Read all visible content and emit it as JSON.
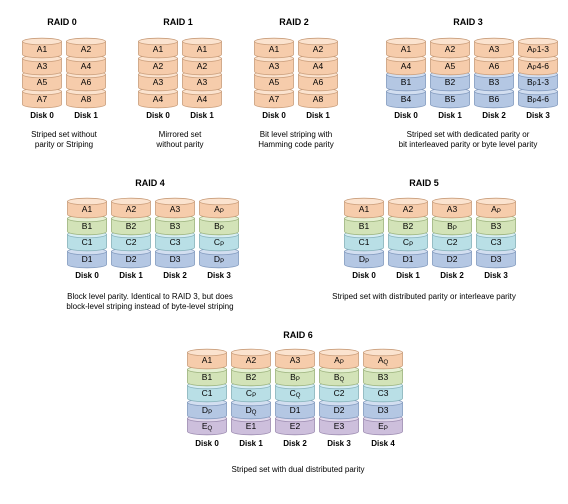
{
  "colors": {
    "orange": {
      "fill": "#f6ccab",
      "top": "#fbe3cf",
      "stroke": "#c99d7a"
    },
    "green": {
      "fill": "#d3e3b8",
      "top": "#e6f0d4",
      "stroke": "#9bb27c"
    },
    "cyan": {
      "fill": "#b9dfe6",
      "top": "#d8eef2",
      "stroke": "#86b1ba"
    },
    "blue": {
      "fill": "#b4c7e3",
      "top": "#d2def0",
      "stroke": "#8199bd"
    },
    "purple": {
      "fill": "#cdbfdc",
      "top": "#e2d9ec",
      "stroke": "#9c8bb0"
    }
  },
  "arrays": [
    {
      "title": "RAID 0",
      "caption": [
        "Striped set without",
        "parity or Striping"
      ],
      "disks": [
        {
          "label": "Disk 0",
          "blocks": [
            {
              "t": "A1",
              "c": "orange"
            },
            {
              "t": "A3",
              "c": "orange"
            },
            {
              "t": "A5",
              "c": "orange"
            },
            {
              "t": "A7",
              "c": "orange"
            }
          ]
        },
        {
          "label": "Disk 1",
          "blocks": [
            {
              "t": "A2",
              "c": "orange"
            },
            {
              "t": "A4",
              "c": "orange"
            },
            {
              "t": "A6",
              "c": "orange"
            },
            {
              "t": "A8",
              "c": "orange"
            }
          ]
        }
      ]
    },
    {
      "title": "RAID 1",
      "caption": [
        "Mirrored set",
        "without parity"
      ],
      "disks": [
        {
          "label": "Disk 0",
          "blocks": [
            {
              "t": "A1",
              "c": "orange"
            },
            {
              "t": "A2",
              "c": "orange"
            },
            {
              "t": "A3",
              "c": "orange"
            },
            {
              "t": "A4",
              "c": "orange"
            }
          ]
        },
        {
          "label": "Disk 1",
          "blocks": [
            {
              "t": "A1",
              "c": "orange"
            },
            {
              "t": "A2",
              "c": "orange"
            },
            {
              "t": "A3",
              "c": "orange"
            },
            {
              "t": "A4",
              "c": "orange"
            }
          ]
        }
      ]
    },
    {
      "title": "RAID 2",
      "caption": [
        "Bit level striping with",
        "Hamming code parity"
      ],
      "disks": [
        {
          "label": "Disk 0",
          "blocks": [
            {
              "t": "A1",
              "c": "orange"
            },
            {
              "t": "A3",
              "c": "orange"
            },
            {
              "t": "A5",
              "c": "orange"
            },
            {
              "t": "A7",
              "c": "orange"
            }
          ]
        },
        {
          "label": "Disk 1",
          "blocks": [
            {
              "t": "A2",
              "c": "orange"
            },
            {
              "t": "A4",
              "c": "orange"
            },
            {
              "t": "A6",
              "c": "orange"
            },
            {
              "t": "A8",
              "c": "orange"
            }
          ]
        }
      ]
    },
    {
      "title": "RAID 3",
      "caption": [
        "Striped set with dedicated parity or",
        "bit interleaved parity or byte level parity"
      ],
      "disks": [
        {
          "label": "Disk 0",
          "blocks": [
            {
              "t": "A1",
              "c": "orange"
            },
            {
              "t": "A4",
              "c": "orange"
            },
            {
              "t": "B1",
              "c": "blue"
            },
            {
              "t": "B4",
              "c": "blue"
            }
          ]
        },
        {
          "label": "Disk 1",
          "blocks": [
            {
              "t": "A2",
              "c": "orange"
            },
            {
              "t": "A5",
              "c": "orange"
            },
            {
              "t": "B2",
              "c": "blue"
            },
            {
              "t": "B5",
              "c": "blue"
            }
          ]
        },
        {
          "label": "Disk 2",
          "blocks": [
            {
              "t": "A3",
              "c": "orange"
            },
            {
              "t": "A6",
              "c": "orange"
            },
            {
              "t": "B3",
              "c": "blue"
            },
            {
              "t": "B6",
              "c": "blue"
            }
          ]
        },
        {
          "label": "Disk 3",
          "blocks": [
            {
              "t": "A",
              "s": "P",
              "a": "1-3",
              "c": "orange"
            },
            {
              "t": "A",
              "s": "P",
              "a": "4-6",
              "c": "orange"
            },
            {
              "t": "B",
              "s": "P",
              "a": "1-3",
              "c": "blue"
            },
            {
              "t": "B",
              "s": "P",
              "a": "4-6",
              "c": "blue"
            }
          ]
        }
      ]
    },
    {
      "title": "RAID 4",
      "caption": [
        "Block level parity. Identical to RAID 3, but does",
        "block-level striping instead of byte-level striping"
      ],
      "disks": [
        {
          "label": "Disk 0",
          "blocks": [
            {
              "t": "A1",
              "c": "orange"
            },
            {
              "t": "B1",
              "c": "green"
            },
            {
              "t": "C1",
              "c": "cyan"
            },
            {
              "t": "D1",
              "c": "blue"
            }
          ]
        },
        {
          "label": "Disk 1",
          "blocks": [
            {
              "t": "A2",
              "c": "orange"
            },
            {
              "t": "B2",
              "c": "green"
            },
            {
              "t": "C2",
              "c": "cyan"
            },
            {
              "t": "D2",
              "c": "blue"
            }
          ]
        },
        {
          "label": "Disk 2",
          "blocks": [
            {
              "t": "A3",
              "c": "orange"
            },
            {
              "t": "B3",
              "c": "green"
            },
            {
              "t": "C3",
              "c": "cyan"
            },
            {
              "t": "D3",
              "c": "blue"
            }
          ]
        },
        {
          "label": "Disk 3",
          "blocks": [
            {
              "t": "A",
              "s": "P",
              "c": "orange"
            },
            {
              "t": "B",
              "s": "P",
              "c": "green"
            },
            {
              "t": "C",
              "s": "P",
              "c": "cyan"
            },
            {
              "t": "D",
              "s": "P",
              "c": "blue"
            }
          ]
        }
      ]
    },
    {
      "title": "RAID 5",
      "caption": [
        "Striped set with distributed parity or interleave parity"
      ],
      "disks": [
        {
          "label": "Disk 0",
          "blocks": [
            {
              "t": "A1",
              "c": "orange"
            },
            {
              "t": "B1",
              "c": "green"
            },
            {
              "t": "C1",
              "c": "cyan"
            },
            {
              "t": "D",
              "s": "P",
              "c": "blue"
            }
          ]
        },
        {
          "label": "Disk 1",
          "blocks": [
            {
              "t": "A2",
              "c": "orange"
            },
            {
              "t": "B2",
              "c": "green"
            },
            {
              "t": "C",
              "s": "P",
              "c": "cyan"
            },
            {
              "t": "D1",
              "c": "blue"
            }
          ]
        },
        {
          "label": "Disk 2",
          "blocks": [
            {
              "t": "A3",
              "c": "orange"
            },
            {
              "t": "B",
              "s": "P",
              "c": "green"
            },
            {
              "t": "C2",
              "c": "cyan"
            },
            {
              "t": "D2",
              "c": "blue"
            }
          ]
        },
        {
          "label": "Disk 3",
          "blocks": [
            {
              "t": "A",
              "s": "P",
              "c": "orange"
            },
            {
              "t": "B3",
              "c": "green"
            },
            {
              "t": "C3",
              "c": "cyan"
            },
            {
              "t": "D3",
              "c": "blue"
            }
          ]
        }
      ]
    },
    {
      "title": "RAID 6",
      "caption": [
        "Striped set with dual distributed parity"
      ],
      "disks": [
        {
          "label": "Disk 0",
          "blocks": [
            {
              "t": "A1",
              "c": "orange"
            },
            {
              "t": "B1",
              "c": "green"
            },
            {
              "t": "C1",
              "c": "cyan"
            },
            {
              "t": "D",
              "s": "P",
              "c": "blue"
            },
            {
              "t": "E",
              "s": "Q",
              "c": "purple"
            }
          ]
        },
        {
          "label": "Disk 1",
          "blocks": [
            {
              "t": "A2",
              "c": "orange"
            },
            {
              "t": "B2",
              "c": "green"
            },
            {
              "t": "C",
              "s": "P",
              "c": "cyan"
            },
            {
              "t": "D",
              "s": "Q",
              "c": "blue"
            },
            {
              "t": "E1",
              "c": "purple"
            }
          ]
        },
        {
          "label": "Disk 2",
          "blocks": [
            {
              "t": "A3",
              "c": "orange"
            },
            {
              "t": "B",
              "s": "P",
              "c": "green"
            },
            {
              "t": "C",
              "s": "Q",
              "c": "cyan"
            },
            {
              "t": "D1",
              "c": "blue"
            },
            {
              "t": "E2",
              "c": "purple"
            }
          ]
        },
        {
          "label": "Disk 3",
          "blocks": [
            {
              "t": "A",
              "s": "P",
              "c": "orange"
            },
            {
              "t": "B",
              "s": "Q",
              "c": "green"
            },
            {
              "t": "C2",
              "c": "cyan"
            },
            {
              "t": "D2",
              "c": "blue"
            },
            {
              "t": "E3",
              "c": "purple"
            }
          ]
        },
        {
          "label": "Disk 4",
          "blocks": [
            {
              "t": "A",
              "s": "Q",
              "c": "orange"
            },
            {
              "t": "B3",
              "c": "green"
            },
            {
              "t": "C3",
              "c": "cyan"
            },
            {
              "t": "D3",
              "c": "blue"
            },
            {
              "t": "E",
              "s": "P",
              "c": "purple"
            }
          ]
        }
      ]
    }
  ]
}
